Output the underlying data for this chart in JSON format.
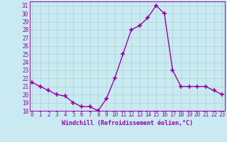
{
  "x": [
    0,
    1,
    2,
    3,
    4,
    5,
    6,
    7,
    8,
    9,
    10,
    11,
    12,
    13,
    14,
    15,
    16,
    17,
    18,
    19,
    20,
    21,
    22,
    23
  ],
  "y": [
    21.5,
    21.0,
    20.5,
    20.0,
    19.8,
    19.0,
    18.5,
    18.5,
    18.0,
    19.5,
    22.0,
    25.0,
    28.0,
    28.5,
    29.5,
    31.0,
    30.0,
    23.0,
    21.0,
    21.0,
    21.0,
    21.0,
    20.5,
    20.0
  ],
  "line_color": "#9900aa",
  "marker": "+",
  "marker_size": 4,
  "marker_lw": 1.2,
  "line_width": 1.0,
  "bg_color": "#c8eaf0",
  "grid_color": "#b0d0d8",
  "xlabel": "Windchill (Refroidissement éolien,°C)",
  "xlabel_color": "#9900aa",
  "tick_color": "#9900aa",
  "label_color": "#9900aa",
  "ylim": [
    18,
    31.5
  ],
  "yticks": [
    18,
    19,
    20,
    21,
    22,
    23,
    24,
    25,
    26,
    27,
    28,
    29,
    30,
    31
  ],
  "xticks": [
    0,
    1,
    2,
    3,
    4,
    5,
    6,
    7,
    8,
    9,
    10,
    11,
    12,
    13,
    14,
    15,
    16,
    17,
    18,
    19,
    20,
    21,
    22,
    23
  ],
  "xtick_labels": [
    "0",
    "1",
    "2",
    "3",
    "4",
    "5",
    "6",
    "7",
    "8",
    "9",
    "10",
    "11",
    "12",
    "13",
    "14",
    "15",
    "16",
    "17",
    "18",
    "19",
    "20",
    "21",
    "22",
    "23"
  ],
  "xlim": [
    -0.3,
    23.3
  ]
}
